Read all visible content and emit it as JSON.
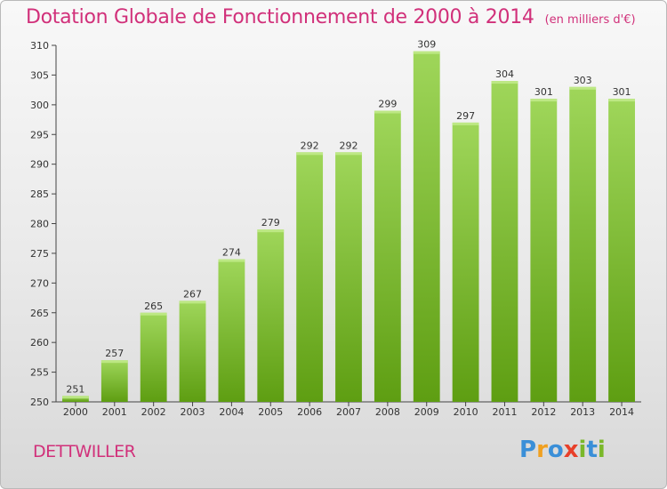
{
  "title": "Dotation Globale de Fonctionnement de 2000 à 2014",
  "unit": "(en milliers d'€)",
  "commune": "DETTWILLER",
  "logo": {
    "letters": [
      "P",
      "r",
      "o",
      "x",
      "i",
      "t",
      "i"
    ],
    "colors": [
      "#3a8fd8",
      "#f0a020",
      "#3a8fd8",
      "#e8402a",
      "#7ab82a",
      "#3a8fd8",
      "#7ab82a"
    ]
  },
  "colors": {
    "bar_top": "#9fd65a",
    "bar_bottom": "#5e9e12",
    "title": "#d1307a"
  },
  "chart_data": {
    "type": "bar",
    "categories": [
      "2000",
      "2001",
      "2002",
      "2003",
      "2004",
      "2005",
      "2006",
      "2007",
      "2008",
      "2009",
      "2010",
      "2011",
      "2012",
      "2013",
      "2014"
    ],
    "values": [
      251,
      257,
      265,
      267,
      274,
      279,
      292,
      292,
      299,
      309,
      297,
      304,
      301,
      303,
      301
    ],
    "ylim": [
      250,
      310
    ],
    "yticks": [
      250,
      255,
      260,
      265,
      270,
      275,
      280,
      285,
      290,
      295,
      300,
      305,
      310
    ],
    "grid": false,
    "data_labels": true
  }
}
